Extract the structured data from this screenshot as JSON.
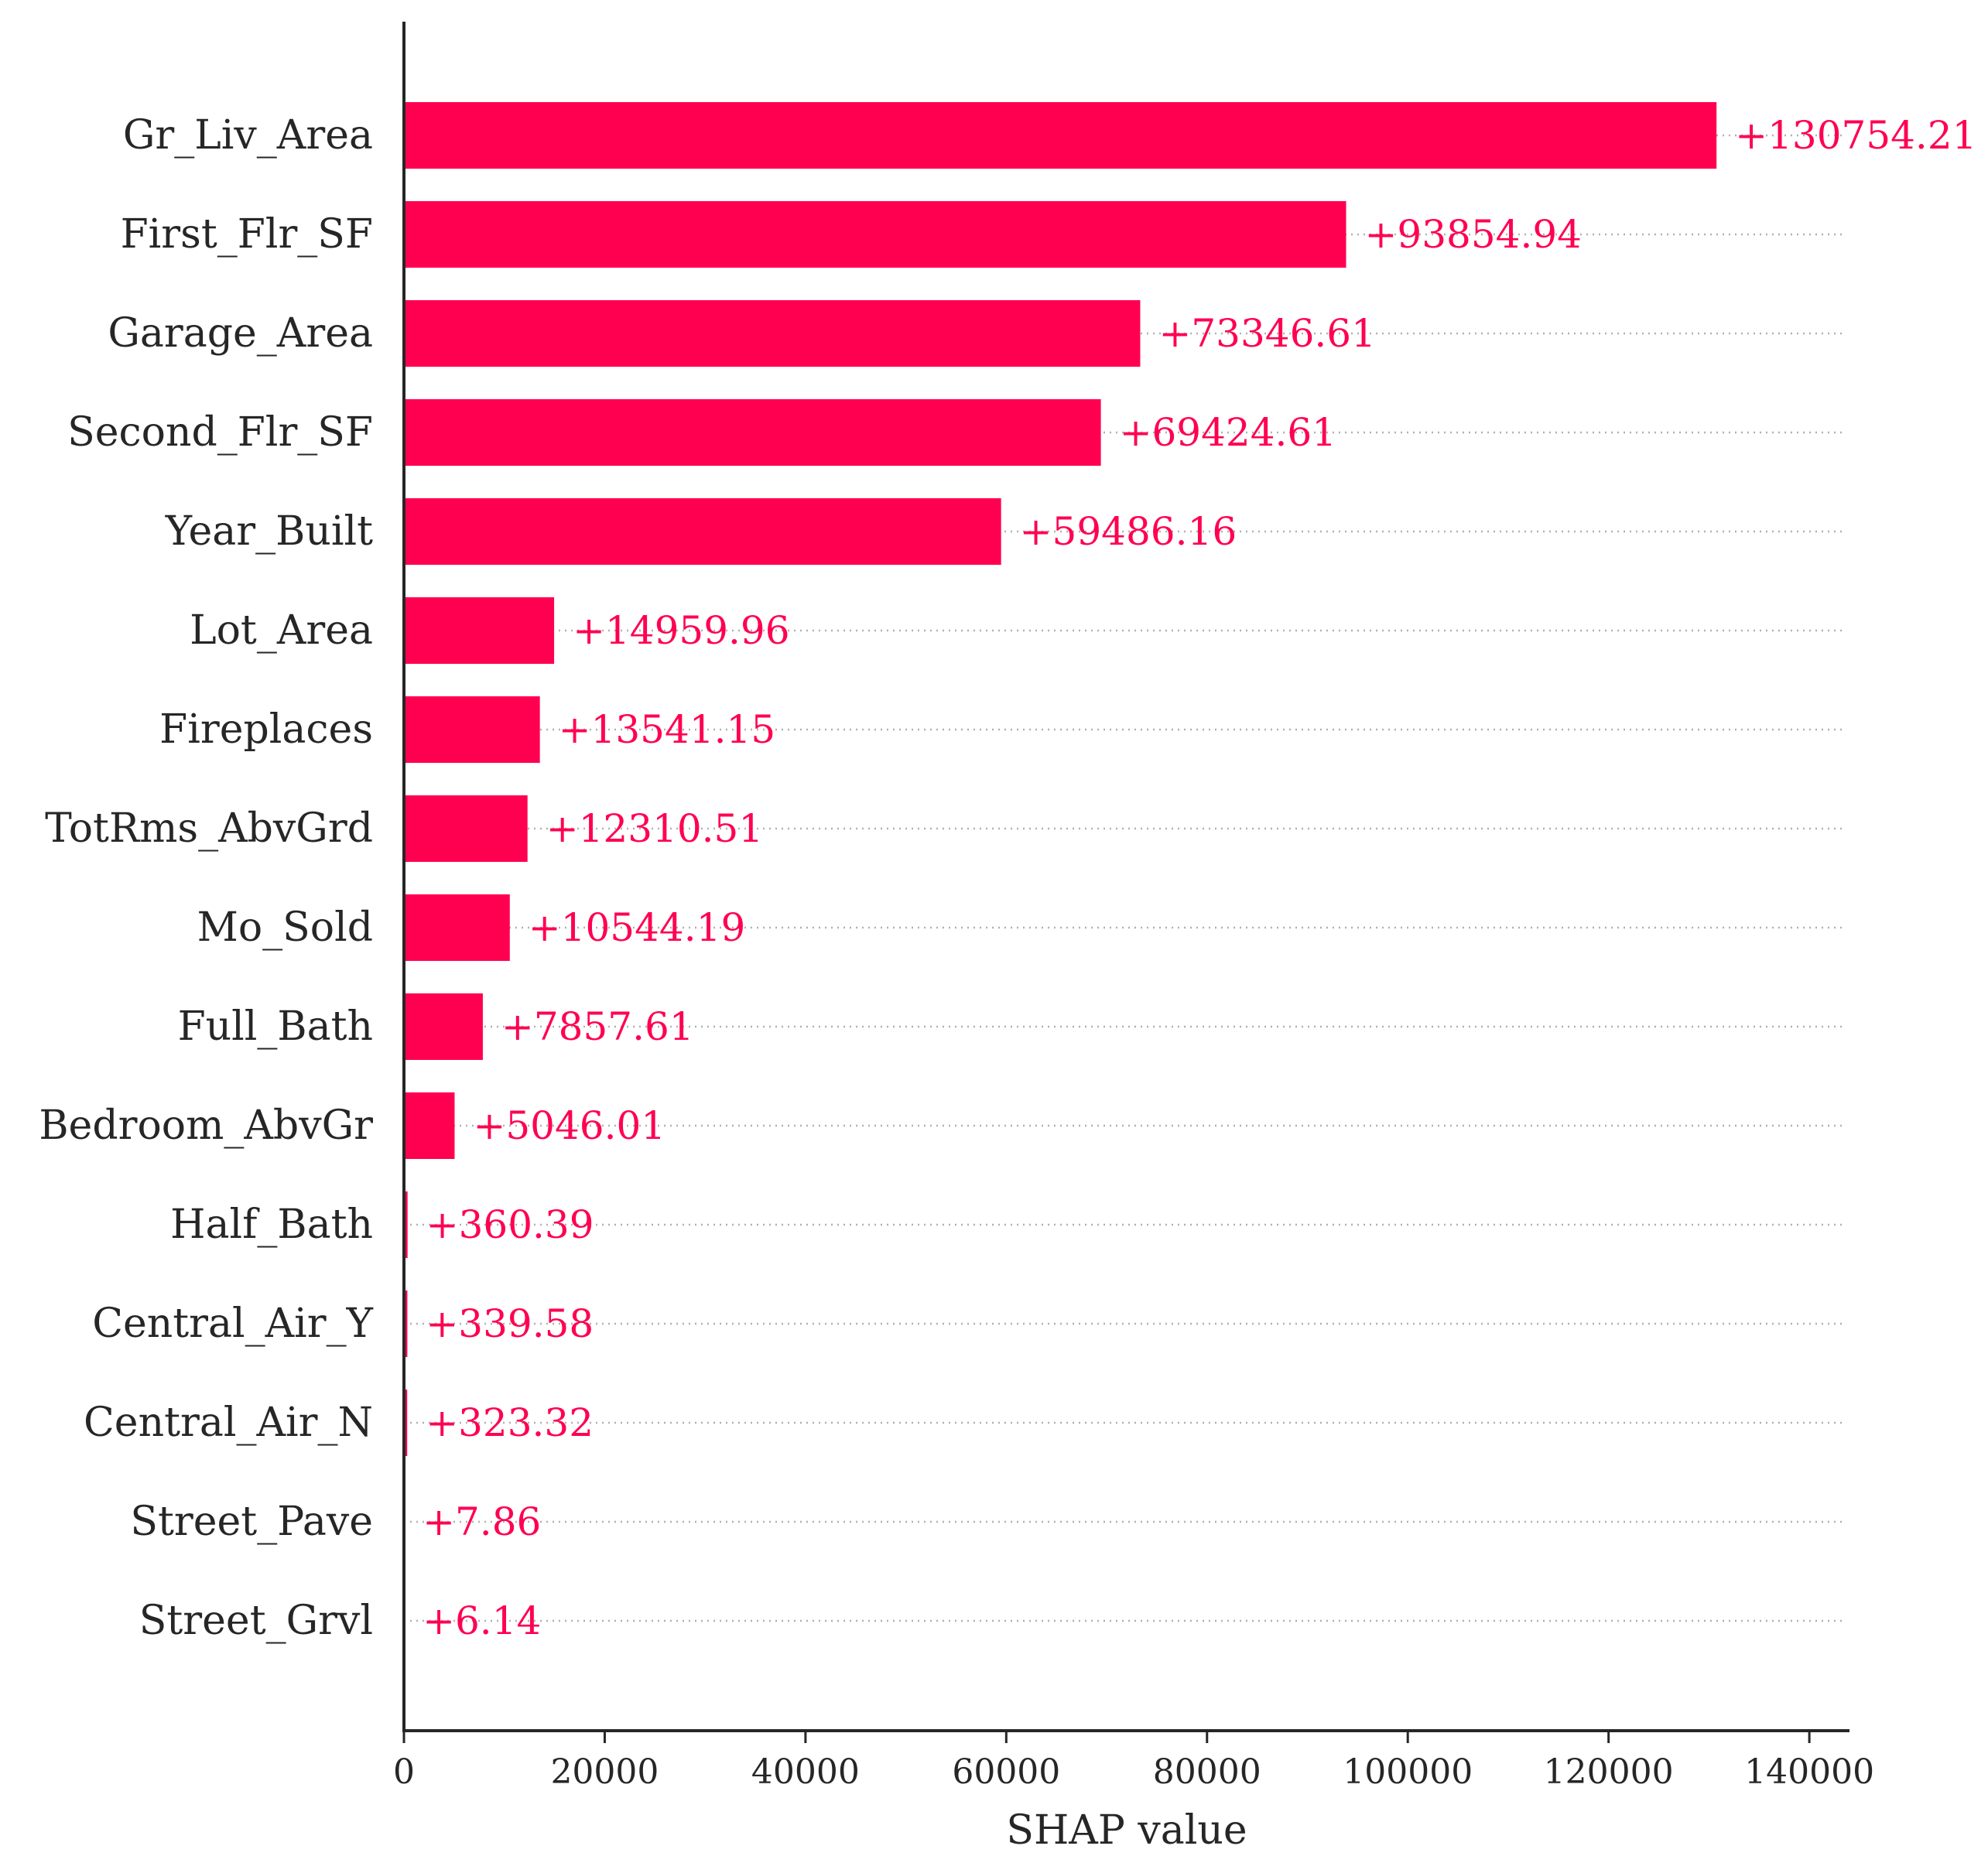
{
  "chart_data": {
    "type": "bar",
    "orientation": "horizontal",
    "title": "",
    "xlabel": "SHAP value",
    "ylabel": "",
    "xlim": [
      0,
      144000
    ],
    "x_ticks": [
      0,
      20000,
      40000,
      60000,
      80000,
      100000,
      120000,
      140000
    ],
    "grid": "dotted row guides",
    "bar_color": "#ff0051",
    "categories": [
      "Gr_Liv_Area",
      "First_Flr_SF",
      "Garage_Area",
      "Second_Flr_SF",
      "Year_Built",
      "Lot_Area",
      "Fireplaces",
      "TotRms_AbvGrd",
      "Mo_Sold",
      "Full_Bath",
      "Bedroom_AbvGr",
      "Half_Bath",
      "Central_Air_Y",
      "Central_Air_N",
      "Street_Pave",
      "Street_Grvl"
    ],
    "values": [
      130754.21,
      93854.94,
      73346.61,
      69424.61,
      59486.16,
      14959.96,
      13541.15,
      12310.51,
      10544.19,
      7857.61,
      5046.01,
      360.39,
      339.58,
      323.32,
      7.86,
      6.14
    ],
    "value_labels": [
      "+130754.21",
      "+93854.94",
      "+73346.61",
      "+69424.61",
      "+59486.16",
      "+14959.96",
      "+13541.15",
      "+12310.51",
      "+10544.19",
      "+7857.61",
      "+5046.01",
      "+360.39",
      "+339.58",
      "+323.32",
      "+7.86",
      "+6.14"
    ]
  }
}
